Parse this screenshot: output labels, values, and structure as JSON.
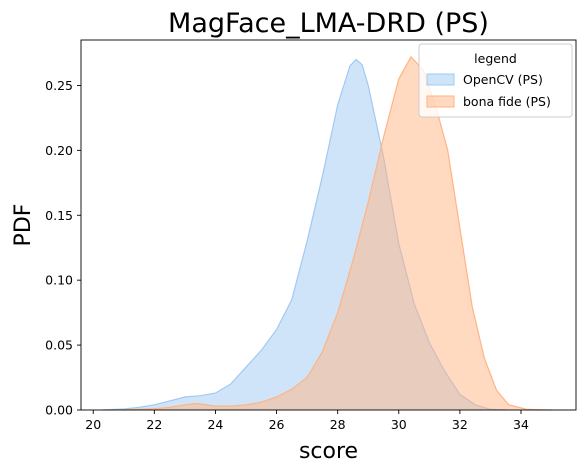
{
  "chart_data": {
    "type": "area",
    "title": "MagFace_LMA-DRD (PS)",
    "xlabel": "score",
    "ylabel": "PDF",
    "xlim": [
      19.6,
      35.8
    ],
    "ylim": [
      0,
      0.285
    ],
    "xticks": [
      20,
      22,
      24,
      26,
      28,
      30,
      32,
      34
    ],
    "yticks": [
      0.0,
      0.05,
      0.1,
      0.15,
      0.2,
      0.25
    ],
    "ytick_labels": [
      "0.00",
      "0.05",
      "0.10",
      "0.15",
      "0.20",
      "0.25"
    ],
    "grid": false,
    "legend": {
      "title": "legend",
      "placement": "top-right"
    },
    "series": [
      {
        "name": "OpenCV (PS)",
        "fill": "#a1c9f4",
        "stroke": "#a1c9f4",
        "points": [
          [
            20.3,
            0.0
          ],
          [
            21.0,
            0.0008
          ],
          [
            21.5,
            0.002
          ],
          [
            22.0,
            0.004
          ],
          [
            22.5,
            0.007
          ],
          [
            23.0,
            0.01
          ],
          [
            23.5,
            0.011
          ],
          [
            24.0,
            0.013
          ],
          [
            24.5,
            0.02
          ],
          [
            25.0,
            0.033
          ],
          [
            25.5,
            0.046
          ],
          [
            26.0,
            0.062
          ],
          [
            26.5,
            0.085
          ],
          [
            27.0,
            0.13
          ],
          [
            27.5,
            0.18
          ],
          [
            28.0,
            0.235
          ],
          [
            28.4,
            0.265
          ],
          [
            28.6,
            0.27
          ],
          [
            28.8,
            0.266
          ],
          [
            29.0,
            0.25
          ],
          [
            29.5,
            0.195
          ],
          [
            30.0,
            0.128
          ],
          [
            30.5,
            0.082
          ],
          [
            31.0,
            0.052
          ],
          [
            31.5,
            0.03
          ],
          [
            32.0,
            0.012
          ],
          [
            32.5,
            0.004
          ],
          [
            33.0,
            0.0005
          ],
          [
            33.5,
            0.0
          ]
        ]
      },
      {
        "name": "bona fide (PS)",
        "fill": "#ffb482",
        "stroke": "#ffb482",
        "points": [
          [
            21.0,
            0.0
          ],
          [
            22.0,
            0.001
          ],
          [
            22.5,
            0.002
          ],
          [
            23.0,
            0.004
          ],
          [
            23.4,
            0.005
          ],
          [
            24.0,
            0.003
          ],
          [
            24.5,
            0.003
          ],
          [
            25.0,
            0.004
          ],
          [
            25.5,
            0.006
          ],
          [
            26.0,
            0.01
          ],
          [
            26.5,
            0.016
          ],
          [
            27.0,
            0.025
          ],
          [
            27.5,
            0.045
          ],
          [
            28.0,
            0.075
          ],
          [
            28.5,
            0.115
          ],
          [
            29.0,
            0.16
          ],
          [
            29.5,
            0.21
          ],
          [
            30.0,
            0.255
          ],
          [
            30.4,
            0.272
          ],
          [
            30.8,
            0.262
          ],
          [
            31.2,
            0.235
          ],
          [
            31.6,
            0.2
          ],
          [
            32.0,
            0.14
          ],
          [
            32.4,
            0.08
          ],
          [
            32.8,
            0.04
          ],
          [
            33.2,
            0.015
          ],
          [
            33.6,
            0.004
          ],
          [
            34.2,
            0.0005
          ],
          [
            35.0,
            0.0
          ]
        ]
      }
    ]
  }
}
